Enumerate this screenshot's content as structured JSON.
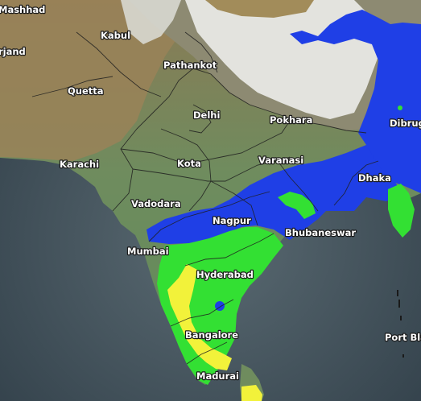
{
  "map": {
    "colors": {
      "sea": "#3b4a55",
      "land": "#6e8e63",
      "mountains": "#8a8870",
      "snow": "#e6e6e2",
      "rain_blue": "#1f3fe6",
      "rain_green": "#33e033",
      "rain_yellow": "#f2f23a",
      "border": "#222222"
    },
    "cities": [
      {
        "name": "Mashhad"
      },
      {
        "name": "rjand"
      },
      {
        "name": "Kabul"
      },
      {
        "name": "Pathankot"
      },
      {
        "name": "Quetta"
      },
      {
        "name": "Delhi"
      },
      {
        "name": "Pokhara"
      },
      {
        "name": "Dibrug"
      },
      {
        "name": "Karachi"
      },
      {
        "name": "Kota"
      },
      {
        "name": "Varanasi"
      },
      {
        "name": "Dhaka"
      },
      {
        "name": "Vadodara"
      },
      {
        "name": "Nagpur"
      },
      {
        "name": "Bhubaneswar"
      },
      {
        "name": "Mumbai"
      },
      {
        "name": "Hyderabad"
      },
      {
        "name": "Bangalore"
      },
      {
        "name": "Port Bla"
      },
      {
        "name": "Madurai"
      }
    ]
  }
}
